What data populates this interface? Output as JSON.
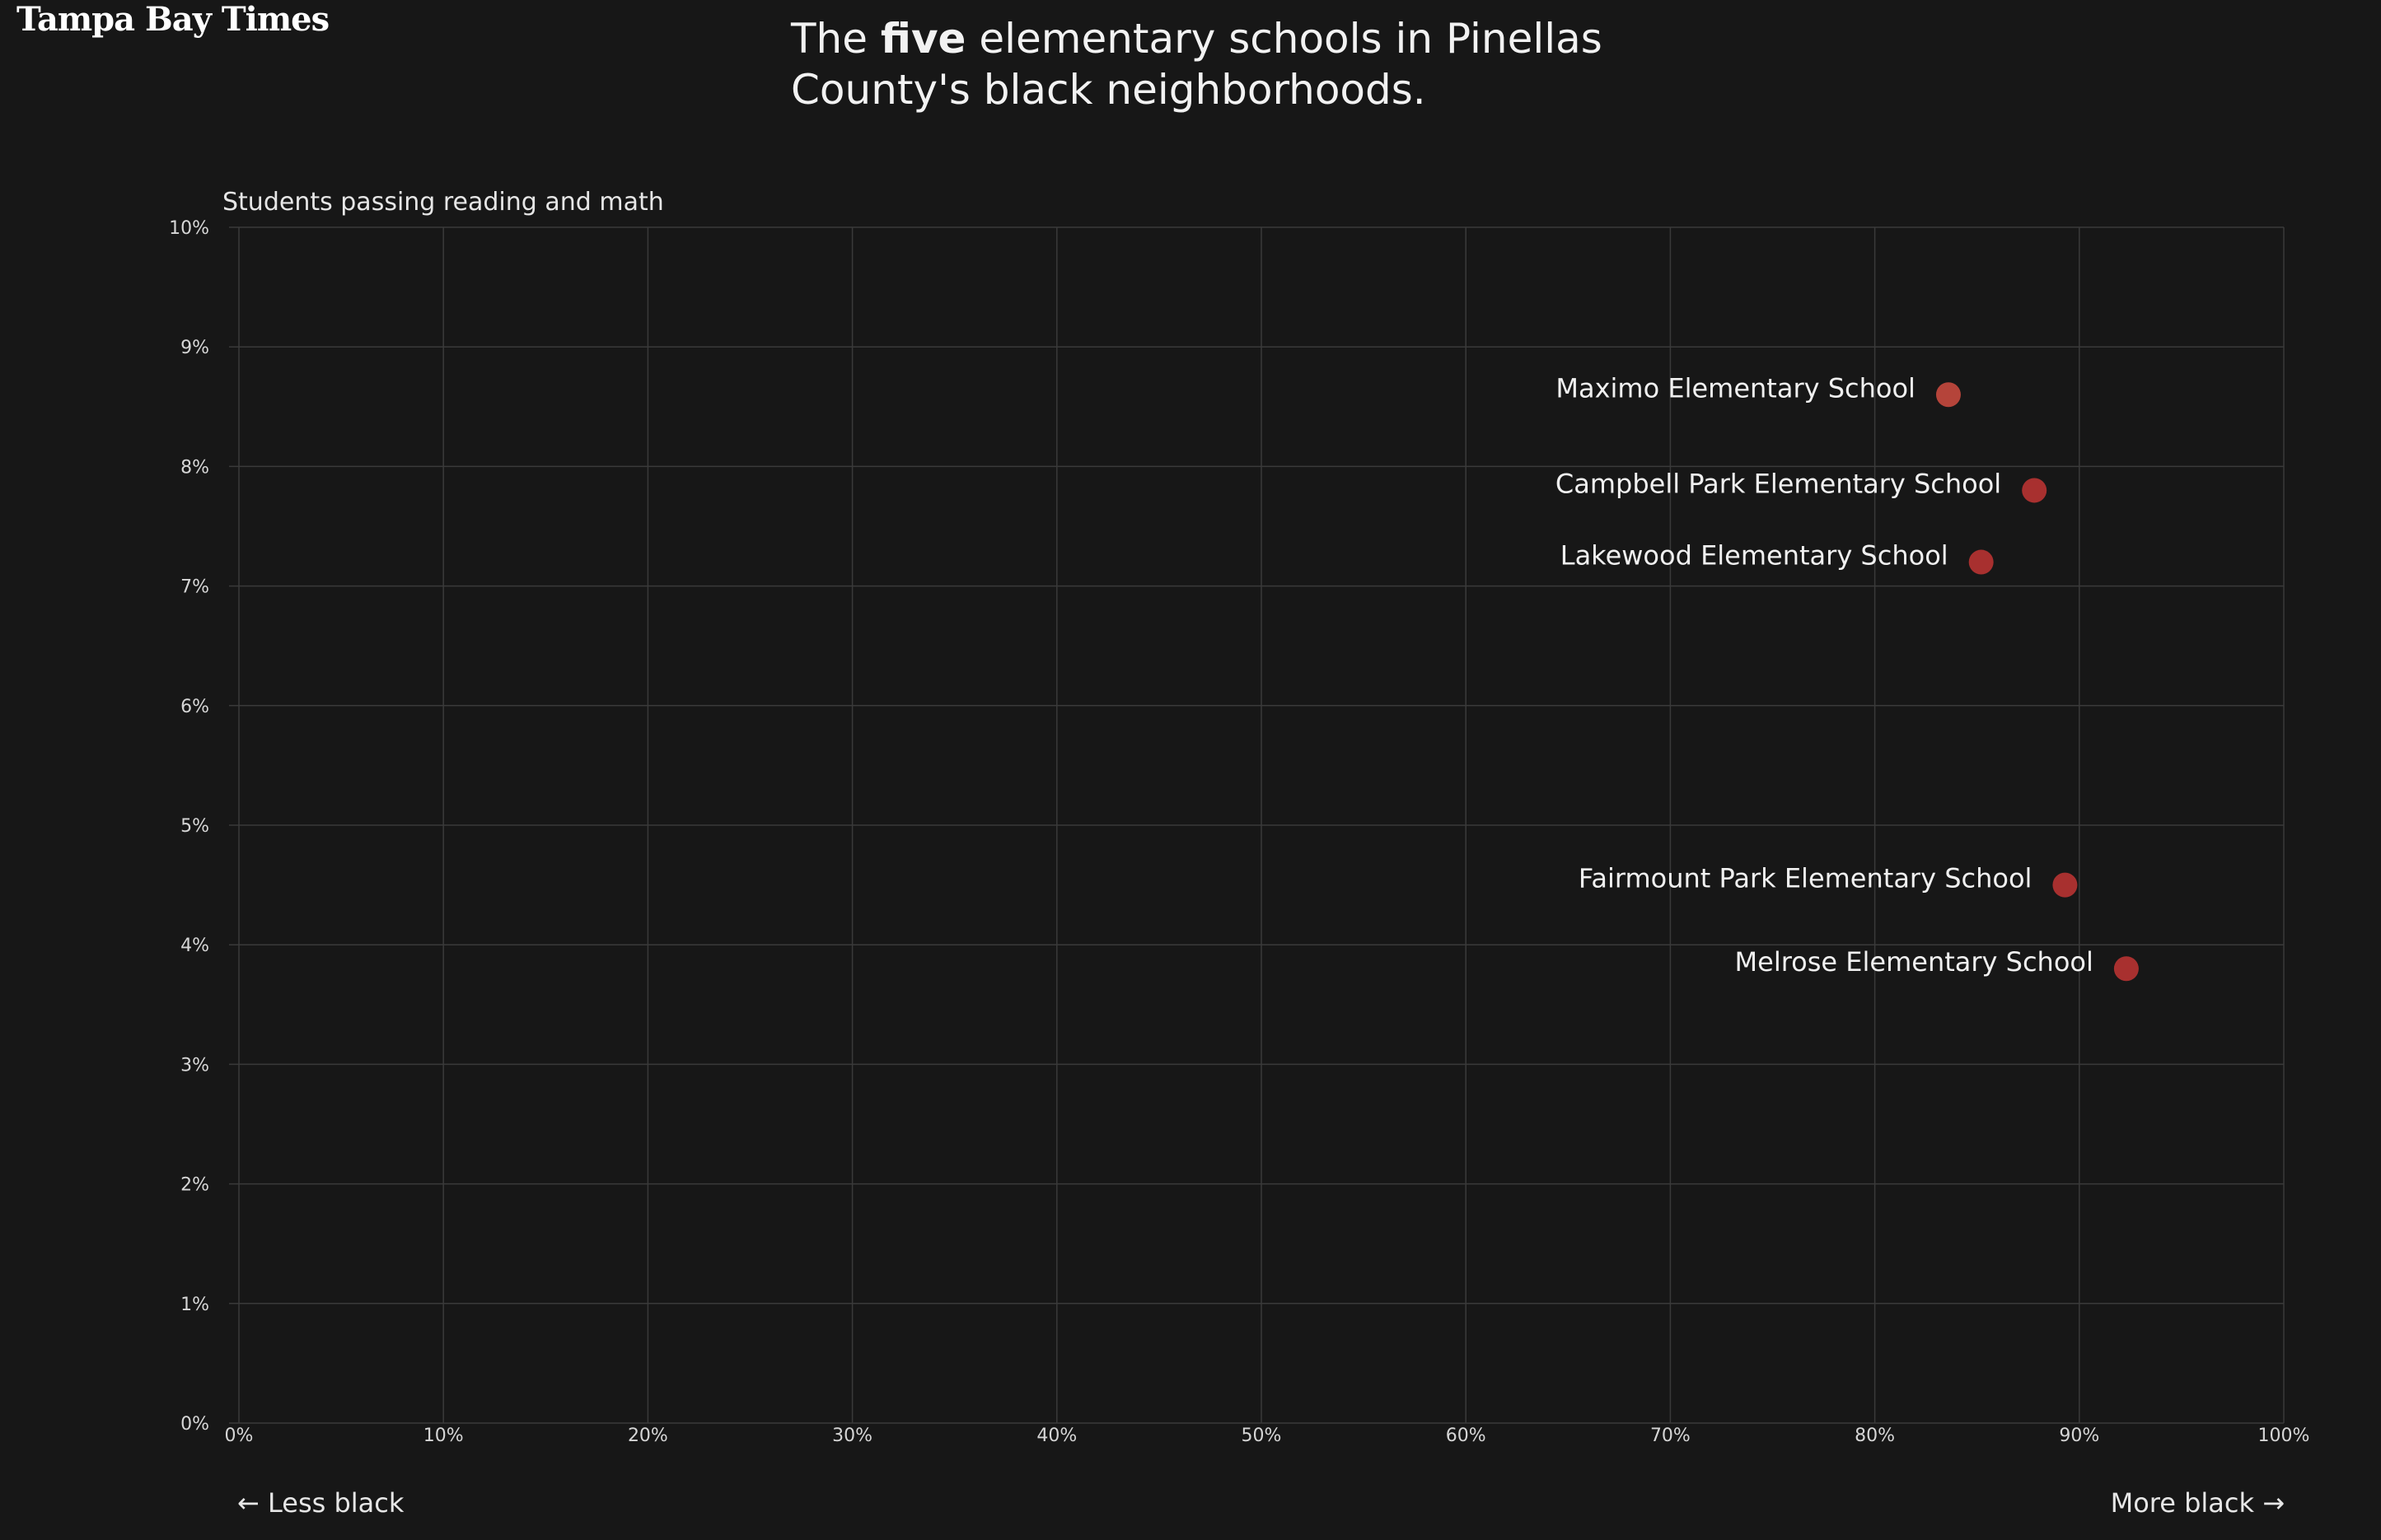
{
  "logo": "Tampa Bay Times",
  "headline": {
    "before": "The ",
    "emphasis": "five",
    "after": " elementary schools in Pinellas County's black neighborhoods."
  },
  "direction_labels": {
    "left": "← Less black",
    "right": "More black →"
  },
  "colors": {
    "background": "#171717",
    "grid": "#3a3a3a",
    "point": "#a8302f",
    "point_highlight": "#b5443a"
  },
  "chart_data": {
    "type": "scatter",
    "title": "",
    "xlabel": "",
    "ylabel": "Students passing reading and math",
    "xlim": [
      0,
      100
    ],
    "ylim": [
      0,
      10
    ],
    "x_ticks": [
      "0%",
      "10%",
      "20%",
      "30%",
      "40%",
      "50%",
      "60%",
      "70%",
      "80%",
      "90%",
      "100%"
    ],
    "y_ticks": [
      "0%",
      "1%",
      "2%",
      "3%",
      "4%",
      "5%",
      "6%",
      "7%",
      "8%",
      "9%",
      "10%"
    ],
    "grid": true,
    "points": [
      {
        "label": "Maximo Elementary School",
        "x": 83.6,
        "y": 8.6
      },
      {
        "label": "Campbell Park Elementary School",
        "x": 87.8,
        "y": 7.8
      },
      {
        "label": "Lakewood Elementary School",
        "x": 85.2,
        "y": 7.2
      },
      {
        "label": "Fairmount Park Elementary School",
        "x": 89.3,
        "y": 4.5
      },
      {
        "label": "Melrose Elementary School",
        "x": 92.3,
        "y": 3.8
      }
    ]
  }
}
